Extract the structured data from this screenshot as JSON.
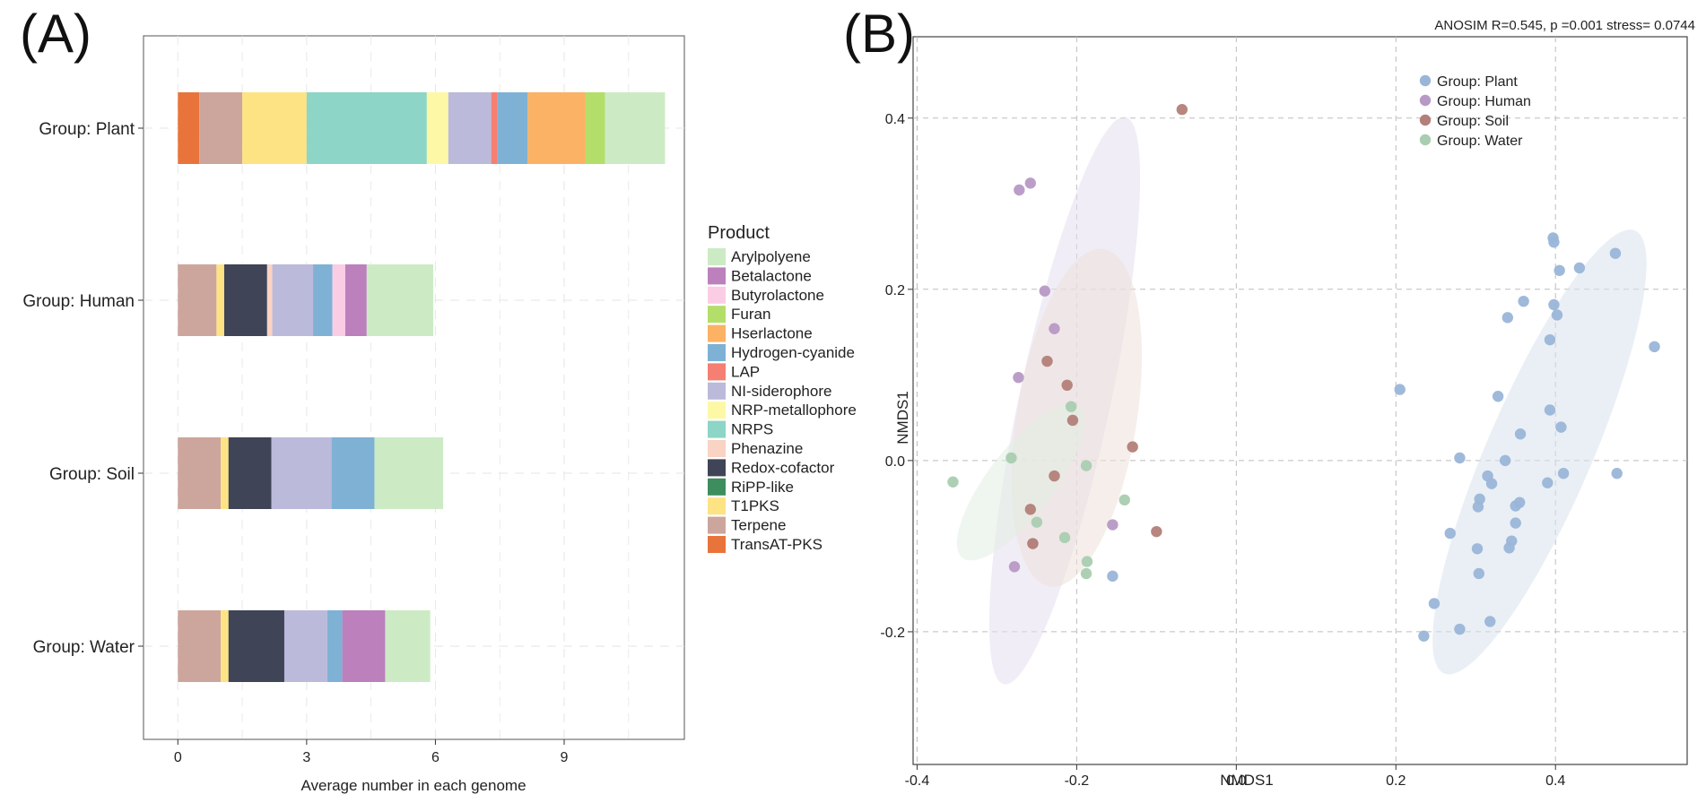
{
  "chart_data": [
    {
      "panel": "(A)",
      "type": "bar",
      "orientation": "horizontal",
      "stacked": true,
      "xlabel": "Average number in each genome",
      "ylabel": "",
      "xlim": [
        -0.8,
        11.8
      ],
      "xticks": [
        0,
        3,
        6,
        9
      ],
      "grid": true,
      "categories": [
        "Group: Plant",
        "Group: Human",
        "Group: Soil",
        "Group: Water"
      ],
      "legend_title": "Product",
      "legend_position": "right",
      "series": [
        {
          "name": "TransAT-PKS",
          "color": "#E8743B",
          "values": [
            0.5,
            0,
            0,
            0
          ]
        },
        {
          "name": "Terpene",
          "color": "#CCA69C",
          "values": [
            1.0,
            0.9,
            1.0,
            1.0
          ]
        },
        {
          "name": "T1PKS",
          "color": "#FDE383",
          "values": [
            1.5,
            0.18,
            0.18,
            0.18
          ]
        },
        {
          "name": "RiPP-like",
          "color": "#3E8D5E",
          "values": [
            0,
            0,
            0,
            0
          ]
        },
        {
          "name": "Redox-cofactor",
          "color": "#3F4457",
          "values": [
            0,
            1.0,
            1.0,
            1.3
          ]
        },
        {
          "name": "Phenazine",
          "color": "#F9D3C3",
          "values": [
            0,
            0.12,
            0,
            0
          ]
        },
        {
          "name": "NRPS",
          "color": "#8DD5C6",
          "values": [
            2.8,
            0,
            0,
            0
          ]
        },
        {
          "name": "NRP-metallophore",
          "color": "#FCF8A6",
          "values": [
            0.5,
            0,
            0,
            0
          ]
        },
        {
          "name": "NI-siderophore",
          "color": "#BBBADB",
          "values": [
            1.0,
            0.95,
            1.4,
            1.0
          ]
        },
        {
          "name": "LAP",
          "color": "#F57F72",
          "values": [
            0.15,
            0,
            0,
            0
          ]
        },
        {
          "name": "Hydrogen-cyanide",
          "color": "#7FB1D5",
          "values": [
            0.7,
            0.45,
            1.0,
            0.35
          ]
        },
        {
          "name": "Hserlactone",
          "color": "#FBB264",
          "values": [
            1.35,
            0,
            0,
            0
          ]
        },
        {
          "name": "Furan",
          "color": "#B3DE69",
          "values": [
            0.45,
            0,
            0,
            0
          ]
        },
        {
          "name": "Butyrolactone",
          "color": "#FBCDE5",
          "values": [
            0,
            0.3,
            0,
            0
          ]
        },
        {
          "name": "Betalactone",
          "color": "#BC80BD",
          "values": [
            0,
            0.5,
            0,
            1.0
          ]
        },
        {
          "name": "Arylpolyene",
          "color": "#CCEBC5",
          "values": [
            1.4,
            1.55,
            1.6,
            1.05
          ]
        }
      ]
    },
    {
      "panel": "(B)",
      "type": "scatter",
      "title": "ANOSIM R=0.545, p =0.001 stress= 0.0744",
      "xlabel": "NMDS1",
      "ylabel": "NMDS1",
      "xlim": [
        -0.405,
        0.565
      ],
      "ylim": [
        -0.355,
        0.495
      ],
      "xticks": [
        -0.4,
        -0.2,
        0.0,
        0.2,
        0.4
      ],
      "yticks": [
        -0.2,
        0.0,
        0.2,
        0.4
      ],
      "xtick_labels": [
        "-0.4",
        "-0.2",
        "0.0",
        "0.2",
        "0.4"
      ],
      "ytick_labels": [
        "-0.2",
        "0.0",
        "0.2",
        "0.4"
      ],
      "grid": true,
      "legend_position": "top-right",
      "series": [
        {
          "name": "Group: Plant",
          "color": "#9AB5D8",
          "ellipse_color": "#D8E2EC",
          "ellipse": {
            "cx": 0.38,
            "cy": 0.01,
            "semi_major": 0.285,
            "semi_minor": 0.065,
            "angle_deg": 65
          },
          "points": [
            [
              0.397,
              0.26
            ],
            [
              0.398,
              0.255
            ],
            [
              0.475,
              0.242
            ],
            [
              0.43,
              0.225
            ],
            [
              0.405,
              0.222
            ],
            [
              0.524,
              0.133
            ],
            [
              0.398,
              0.182
            ],
            [
              0.36,
              0.186
            ],
            [
              0.402,
              0.17
            ],
            [
              0.34,
              0.167
            ],
            [
              0.393,
              0.141
            ],
            [
              0.205,
              0.083
            ],
            [
              0.328,
              0.075
            ],
            [
              0.393,
              0.059
            ],
            [
              0.407,
              0.039
            ],
            [
              0.356,
              0.031
            ],
            [
              0.28,
              0.003
            ],
            [
              0.337,
              0.0
            ],
            [
              0.315,
              -0.018
            ],
            [
              0.41,
              -0.015
            ],
            [
              0.477,
              -0.015
            ],
            [
              0.39,
              -0.026
            ],
            [
              0.305,
              -0.045
            ],
            [
              0.303,
              -0.054
            ],
            [
              0.355,
              -0.049
            ],
            [
              0.35,
              -0.053
            ],
            [
              0.32,
              -0.027
            ],
            [
              0.35,
              -0.073
            ],
            [
              0.268,
              -0.085
            ],
            [
              0.345,
              -0.094
            ],
            [
              0.342,
              -0.102
            ],
            [
              0.302,
              -0.103
            ],
            [
              0.304,
              -0.132
            ],
            [
              0.248,
              -0.167
            ],
            [
              0.318,
              -0.188
            ],
            [
              0.28,
              -0.197
            ],
            [
              0.235,
              -0.205
            ],
            [
              -0.155,
              -0.135
            ]
          ]
        },
        {
          "name": "Group: Human",
          "color": "#B799C5",
          "ellipse_color": "#E6DEEE",
          "ellipse": {
            "cx": -0.215,
            "cy": 0.07,
            "semi_major": 0.34,
            "semi_minor": 0.057,
            "angle_deg": 77
          },
          "points": [
            [
              -0.272,
              0.316
            ],
            [
              -0.258,
              0.324
            ],
            [
              -0.24,
              0.198
            ],
            [
              -0.228,
              0.154
            ],
            [
              -0.273,
              0.097
            ],
            [
              -0.255,
              -0.097
            ],
            [
              -0.278,
              -0.124
            ],
            [
              -0.155,
              -0.075
            ]
          ]
        },
        {
          "name": "Group: Soil",
          "color": "#B37F78",
          "ellipse_color": "#EDE0DA",
          "ellipse": {
            "cx": -0.2,
            "cy": 0.05,
            "semi_major": 0.2,
            "semi_minor": 0.075,
            "angle_deg": 80
          },
          "points": [
            [
              -0.068,
              0.41
            ],
            [
              -0.237,
              0.116
            ],
            [
              -0.212,
              0.088
            ],
            [
              -0.205,
              0.047
            ],
            [
              -0.13,
              0.016
            ],
            [
              -0.228,
              -0.018
            ],
            [
              -0.258,
              -0.057
            ],
            [
              -0.255,
              -0.097
            ],
            [
              -0.1,
              -0.083
            ]
          ]
        },
        {
          "name": "Group: Water",
          "color": "#A9CDB0",
          "ellipse_color": "#E2EDE1",
          "ellipse": {
            "cx": -0.27,
            "cy": -0.025,
            "semi_major": 0.115,
            "semi_minor": 0.04,
            "angle_deg": 50
          },
          "points": [
            [
              -0.355,
              -0.025
            ],
            [
              -0.282,
              0.003
            ],
            [
              -0.207,
              0.063
            ],
            [
              -0.188,
              -0.006
            ],
            [
              -0.14,
              -0.046
            ],
            [
              -0.25,
              -0.072
            ],
            [
              -0.215,
              -0.09
            ],
            [
              -0.187,
              -0.118
            ],
            [
              -0.188,
              -0.132
            ]
          ]
        }
      ]
    }
  ]
}
